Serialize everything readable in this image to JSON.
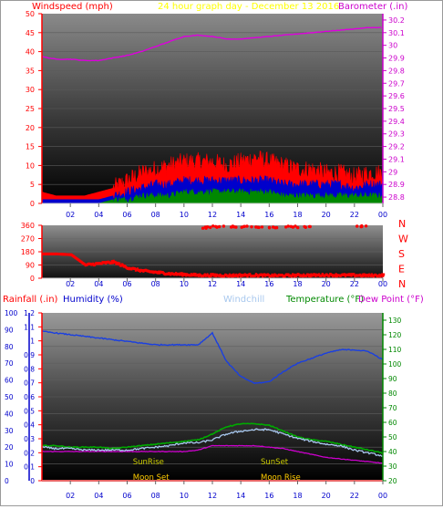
{
  "title_bar": {
    "left_label": "Windspeed (mph)",
    "center_label": "24 hour graph day - December 13 2016",
    "right_label": "Barometer (.in)"
  },
  "bottom_bar": {
    "rain_label": "Rainfall (.in)",
    "humidity_label": "Humidity (%)",
    "windchill_label": "Windchill",
    "temperature_label": "Temperature (°F)",
    "dewpoint_label": "Dew Point (°F)"
  },
  "x_ticks": [
    "02",
    "04",
    "06",
    "08",
    "10",
    "12",
    "14",
    "16",
    "18",
    "20",
    "22",
    "00"
  ],
  "colors": {
    "wind_gust": "#ff0000",
    "wind_avg": "#0000cc",
    "wind_low": "#008800",
    "barometer": "#dd00dd",
    "humidity": "#1a3fe0",
    "windchill": "#a8c8ee",
    "temperature": "#00aa00",
    "dewpoint": "#cc00cc",
    "rain": "#ff0000",
    "direction": "#ff0000",
    "sun_text": "#cccc00",
    "moon_text": "#ffcc00",
    "title_yellow": "#ffff00"
  },
  "chart_data": [
    {
      "type": "line",
      "title": "24 hour graph day - December 13 2016",
      "x_label": "",
      "x": [
        0,
        1,
        2,
        3,
        4,
        5,
        6,
        7,
        8,
        9,
        10,
        11,
        12,
        13,
        14,
        15,
        16,
        17,
        18,
        19,
        20,
        21,
        22,
        23,
        24
      ],
      "y_left_label": "Windspeed (mph)",
      "y_left_range": [
        0,
        50
      ],
      "y_left_ticks": [
        "0",
        "5",
        "10",
        "15",
        "20",
        "25",
        "30",
        "35",
        "40",
        "45",
        "50"
      ],
      "y_right_label": "Barometer (.in)",
      "y_right_range": [
        28.75,
        30.25
      ],
      "y_right_ticks": [
        "28.8",
        "28.9",
        "29",
        "29.1",
        "29.2",
        "29.3",
        "29.4",
        "29.5",
        "29.6",
        "29.7",
        "29.8",
        "29.9",
        "30",
        "30.1",
        "30.2"
      ],
      "series": [
        {
          "name": "Windspeed (mph)",
          "axis": "left",
          "style": "noisy-band",
          "values": [
            3,
            2,
            2,
            2,
            3,
            4,
            6,
            8,
            9,
            10,
            11,
            11,
            11,
            10,
            11,
            12,
            11,
            10,
            9,
            9,
            8,
            8,
            7,
            8,
            8
          ]
        },
        {
          "axis": "left",
          "style": "noisy-band",
          "values": [
            1,
            1,
            1,
            1,
            1,
            2,
            3,
            4,
            5,
            5,
            6,
            6,
            6,
            6,
            6,
            6,
            6,
            5,
            5,
            5,
            5,
            5,
            4,
            5,
            5
          ]
        },
        {
          "axis": "left",
          "style": "noisy-band",
          "values": [
            0,
            0,
            0,
            0,
            0,
            1,
            1,
            2,
            2,
            2,
            3,
            3,
            3,
            3,
            3,
            3,
            3,
            2,
            2,
            2,
            2,
            2,
            2,
            2,
            2
          ]
        },
        {
          "name": "Barometer (.in)",
          "axis": "right",
          "style": "line",
          "values": [
            29.91,
            29.89,
            29.89,
            29.88,
            29.88,
            29.9,
            29.92,
            29.95,
            29.99,
            30.03,
            30.07,
            30.08,
            30.07,
            30.05,
            30.05,
            30.06,
            30.07,
            30.08,
            30.09,
            30.1,
            30.11,
            30.12,
            30.13,
            30.14,
            30.14
          ]
        }
      ]
    },
    {
      "type": "scatter",
      "title": "",
      "x_label": "",
      "x": [
        0,
        1,
        2,
        3,
        4,
        5,
        6,
        7,
        8,
        9,
        10,
        11,
        12,
        13,
        14,
        15,
        16,
        17,
        18,
        19,
        20,
        21,
        22,
        23,
        24
      ],
      "y_left_range": [
        0,
        360
      ],
      "y_left_ticks": [
        "0",
        "90",
        "180",
        "270",
        "360"
      ],
      "y_right_ticks": [
        "N",
        "E",
        "S",
        "W",
        "N"
      ],
      "series": [
        {
          "name": "Wind direction",
          "values": [
            165,
            165,
            160,
            90,
            100,
            110,
            70,
            50,
            40,
            30,
            25,
            20,
            20,
            18,
            20,
            20,
            18,
            18,
            20,
            20,
            22,
            20,
            20,
            18,
            20
          ]
        },
        {
          "values": [
            null,
            null,
            null,
            null,
            null,
            null,
            null,
            null,
            null,
            null,
            null,
            345,
            350,
            352,
            350,
            348,
            345,
            350,
            348,
            null,
            null,
            null,
            352,
            null,
            null
          ]
        }
      ]
    },
    {
      "type": "line",
      "title": "",
      "x_label": "",
      "x": [
        0,
        1,
        2,
        3,
        4,
        5,
        6,
        7,
        8,
        9,
        10,
        11,
        12,
        13,
        14,
        15,
        16,
        17,
        18,
        19,
        20,
        21,
        22,
        23,
        24
      ],
      "y_rain_label": "Rainfall (.in)",
      "y_rain_range": [
        0,
        1.2
      ],
      "y_rain_ticks": [
        "0",
        "0.1",
        "0.2",
        "0.3",
        "0.4",
        "0.5",
        "0.6",
        "0.7",
        "0.8",
        "0.9",
        "1",
        "1.1",
        "1.2"
      ],
      "y_humidity_label": "Humidity (%)",
      "y_humidity_range": [
        0,
        100
      ],
      "y_humidity_ticks": [
        "0",
        "10",
        "20",
        "30",
        "40",
        "50",
        "60",
        "70",
        "80",
        "90",
        "100"
      ],
      "y_temp_label": "Temperature (°F)",
      "y_temp_range": [
        20,
        135
      ],
      "y_temp_ticks": [
        "20",
        "30",
        "40",
        "50",
        "60",
        "70",
        "80",
        "90",
        "100",
        "110",
        "120",
        "130"
      ],
      "series": [
        {
          "name": "Humidity (%)",
          "axis": "humidity",
          "values": [
            89,
            88,
            87,
            86,
            85,
            84,
            83,
            82,
            81,
            81,
            81,
            81,
            88,
            71,
            62,
            58,
            59,
            65,
            70,
            73,
            76,
            78,
            78,
            77,
            72
          ]
        },
        {
          "name": "Windchill",
          "axis": "temp",
          "values": [
            43,
            42,
            42,
            41,
            41,
            41,
            41,
            42,
            43,
            44,
            46,
            46,
            48,
            52,
            54,
            55,
            55,
            52,
            49,
            47,
            45,
            44,
            41,
            39,
            37
          ]
        },
        {
          "name": "Temperature (°F)",
          "axis": "temp",
          "values": [
            44,
            44,
            43,
            43,
            43,
            42,
            43,
            44,
            45,
            46,
            47,
            48,
            52,
            57,
            59,
            59,
            58,
            54,
            50,
            48,
            47,
            45,
            43,
            41,
            39
          ]
        },
        {
          "name": "Dew Point (°F)",
          "axis": "temp",
          "values": [
            40,
            40,
            40,
            40,
            40,
            40,
            40,
            40,
            40,
            40,
            40,
            41,
            44,
            44,
            44,
            44,
            43,
            42,
            40,
            38,
            36,
            35,
            34,
            33,
            32
          ]
        },
        {
          "name": "Rainfall (.in)",
          "axis": "rain",
          "values": [
            0,
            0,
            0,
            0,
            0,
            0,
            0,
            0,
            0,
            0,
            0,
            0,
            0,
            0,
            0,
            0,
            0,
            0,
            0,
            0,
            0,
            0,
            0,
            0,
            0
          ]
        }
      ],
      "annotations": [
        {
          "text": "SunRise",
          "x": 7.3
        },
        {
          "text": "SunSet",
          "x": 16.3
        },
        {
          "text": "Moon Set",
          "x": 7.3
        },
        {
          "text": "Moon Rise",
          "x": 16.3
        }
      ]
    }
  ]
}
